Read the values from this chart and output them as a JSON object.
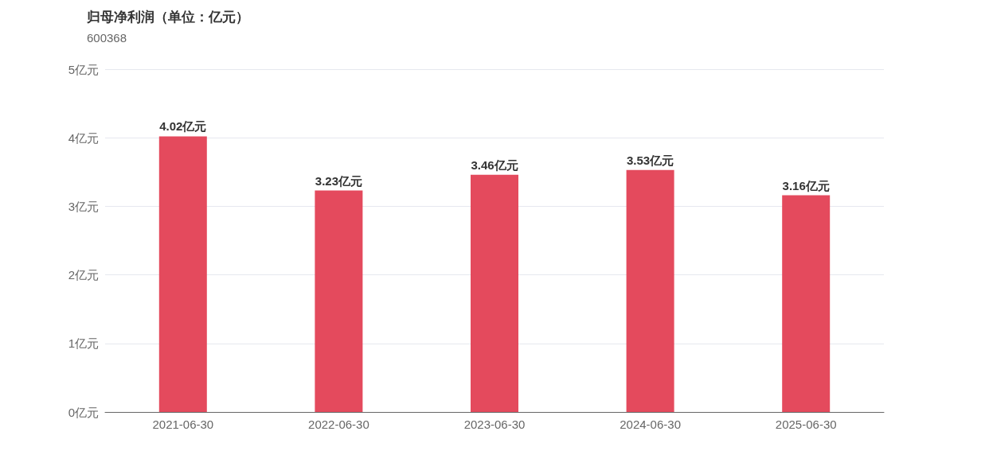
{
  "chart_data": {
    "type": "bar",
    "title": "归母净利润（单位：亿元）",
    "subtitle": "600368",
    "categories": [
      "2021-06-30",
      "2022-06-30",
      "2023-06-30",
      "2024-06-30",
      "2025-06-30"
    ],
    "values": [
      4.02,
      3.23,
      3.46,
      3.53,
      3.16
    ],
    "value_labels": [
      "4.02亿元",
      "3.23亿元",
      "3.46亿元",
      "3.53亿元",
      "3.16亿元"
    ],
    "color": "#e44a5d",
    "ylim": [
      0,
      5
    ],
    "yticks": [
      {
        "value": 0,
        "label": "0亿元"
      },
      {
        "value": 1,
        "label": "1亿元"
      },
      {
        "value": 2,
        "label": "2亿元"
      },
      {
        "value": 3,
        "label": "3亿元"
      },
      {
        "value": 4,
        "label": "4亿元"
      },
      {
        "value": 5,
        "label": "5亿元"
      }
    ],
    "grid": "y"
  }
}
